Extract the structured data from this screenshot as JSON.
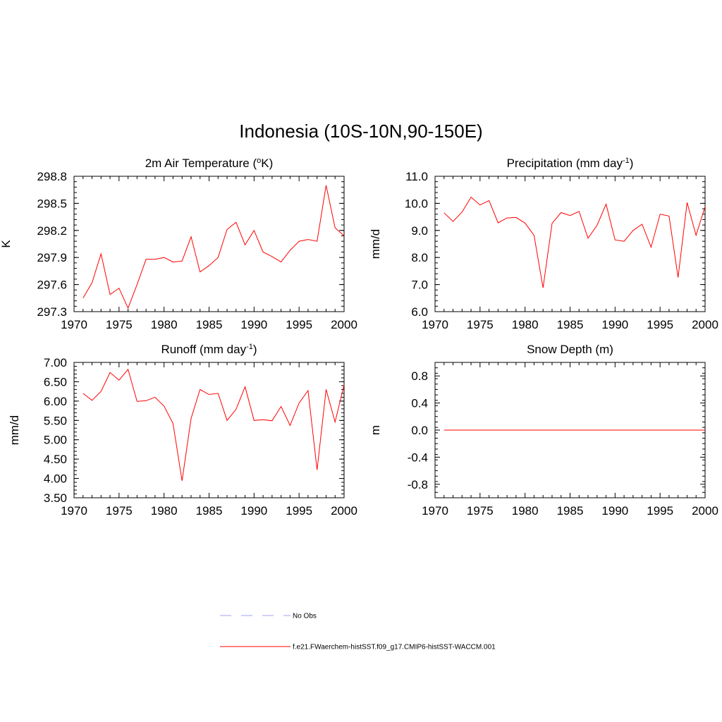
{
  "figure": {
    "title": "Indonesia (10S-10N,90-150E)"
  },
  "legend": {
    "obs_label": "No Obs",
    "obs_color": "#a3a3f5",
    "model_label": "f.e21.FWaerchem-histSST.f09_g17.CMIP6-histSST-WACCM.001",
    "model_color": "#ff0000"
  },
  "chart_data": [
    {
      "type": "line",
      "title": "2m Air Temperature (",
      "title_sup": "o",
      "title_tail": "K)",
      "ylabel": "K",
      "xlim": [
        1970,
        2000
      ],
      "ylim": [
        297.3,
        298.8
      ],
      "xticks": [
        1970,
        1975,
        1980,
        1985,
        1990,
        1995,
        2000
      ],
      "xtick_labels": [
        "1970",
        "1975",
        "1980",
        "1985",
        "1990",
        "1995",
        "2000"
      ],
      "yticks": [
        297.3,
        297.6,
        297.9,
        298.2,
        298.5,
        298.8
      ],
      "ytick_labels": [
        "297.3",
        "297.6",
        "297.9",
        "298.2",
        "298.5",
        "298.8"
      ],
      "series": [
        {
          "color": "#ff0000",
          "x": [
            1971,
            1972,
            1973,
            1974,
            1975,
            1976,
            1977,
            1978,
            1979,
            1980,
            1981,
            1982,
            1983,
            1984,
            1985,
            1986,
            1987,
            1988,
            1989,
            1990,
            1991,
            1992,
            1993,
            1994,
            1995,
            1996,
            1997,
            1998,
            1999,
            2000
          ],
          "values": [
            297.45,
            297.62,
            297.94,
            297.49,
            297.56,
            297.34,
            297.6,
            297.88,
            297.88,
            297.9,
            297.85,
            297.86,
            298.13,
            297.74,
            297.81,
            297.9,
            298.21,
            298.29,
            298.04,
            298.2,
            297.96,
            297.91,
            297.85,
            297.98,
            298.08,
            298.1,
            298.08,
            298.7,
            298.23,
            298.14
          ]
        }
      ]
    },
    {
      "type": "line",
      "title": "Precipitation (mm day",
      "title_sup": "-1",
      "title_tail": ")",
      "ylabel": "mm/d",
      "xlim": [
        1970,
        2000
      ],
      "ylim": [
        6.0,
        11.0
      ],
      "xticks": [
        1970,
        1975,
        1980,
        1985,
        1990,
        1995,
        2000
      ],
      "xtick_labels": [
        "1970",
        "1975",
        "1980",
        "1985",
        "1990",
        "1995",
        "2000"
      ],
      "yticks": [
        6,
        7,
        8,
        9,
        10,
        11
      ],
      "ytick_labels": [
        "6.0",
        "7.0",
        "8.0",
        "9.0",
        "10.0",
        "11.0"
      ],
      "series": [
        {
          "color": "#ff0000",
          "x": [
            1971,
            1972,
            1973,
            1974,
            1975,
            1976,
            1977,
            1978,
            1979,
            1980,
            1981,
            1982,
            1983,
            1984,
            1985,
            1986,
            1987,
            1988,
            1989,
            1990,
            1991,
            1992,
            1993,
            1994,
            1995,
            1996,
            1997,
            1998,
            1999,
            2000
          ],
          "values": [
            9.65,
            9.33,
            9.68,
            10.23,
            9.94,
            10.1,
            9.28,
            9.46,
            9.48,
            9.27,
            8.82,
            6.88,
            9.26,
            9.66,
            9.55,
            9.7,
            8.71,
            9.19,
            9.97,
            8.65,
            8.6,
            9.0,
            9.23,
            8.38,
            9.6,
            9.53,
            7.26,
            10.03,
            8.82,
            9.88
          ]
        }
      ]
    },
    {
      "type": "line",
      "title": "Runoff (mm day",
      "title_sup": "-1",
      "title_tail": ")",
      "ylabel": "mm/d",
      "xlim": [
        1970,
        2000
      ],
      "ylim": [
        3.5,
        7.0
      ],
      "xticks": [
        1970,
        1975,
        1980,
        1985,
        1990,
        1995,
        2000
      ],
      "xtick_labels": [
        "1970",
        "1975",
        "1980",
        "1985",
        "1990",
        "1995",
        "2000"
      ],
      "yticks": [
        3.5,
        4.0,
        4.5,
        5.0,
        5.5,
        6.0,
        6.5,
        7.0
      ],
      "ytick_labels": [
        "3.50",
        "4.00",
        "4.50",
        "5.00",
        "5.50",
        "6.00",
        "6.50",
        "7.00"
      ],
      "series": [
        {
          "color": "#ff0000",
          "x": [
            1971,
            1972,
            1973,
            1974,
            1975,
            1976,
            1977,
            1978,
            1979,
            1980,
            1981,
            1982,
            1983,
            1984,
            1985,
            1986,
            1987,
            1988,
            1989,
            1990,
            1991,
            1992,
            1993,
            1994,
            1995,
            1996,
            1997,
            1998,
            1999,
            2000
          ],
          "values": [
            6.2,
            6.02,
            6.25,
            6.74,
            6.54,
            6.82,
            5.99,
            6.01,
            6.1,
            5.87,
            5.42,
            3.94,
            5.55,
            6.3,
            6.17,
            6.2,
            5.5,
            5.79,
            6.37,
            5.5,
            5.52,
            5.49,
            5.86,
            5.37,
            5.95,
            6.27,
            4.22,
            6.3,
            5.46,
            6.42
          ]
        }
      ]
    },
    {
      "type": "line",
      "title": "Snow Depth (m)",
      "title_sup": "",
      "title_tail": "",
      "ylabel": "m",
      "xlim": [
        1970,
        2000
      ],
      "ylim": [
        -1.0,
        1.0
      ],
      "xticks": [
        1970,
        1975,
        1980,
        1985,
        1990,
        1995,
        2000
      ],
      "xtick_labels": [
        "1970",
        "1975",
        "1980",
        "1985",
        "1990",
        "1995",
        "2000"
      ],
      "yticks": [
        -0.8,
        -0.4,
        0.0,
        0.4,
        0.8
      ],
      "ytick_labels": [
        "-0.8",
        "-0.4",
        "0.0",
        "0.4",
        "0.8"
      ],
      "series": [
        {
          "color": "#ff0000",
          "x": [
            1971,
            1972,
            1973,
            1974,
            1975,
            1976,
            1977,
            1978,
            1979,
            1980,
            1981,
            1982,
            1983,
            1984,
            1985,
            1986,
            1987,
            1988,
            1989,
            1990,
            1991,
            1992,
            1993,
            1994,
            1995,
            1996,
            1997,
            1998,
            1999,
            2000
          ],
          "values": [
            0,
            0,
            0,
            0,
            0,
            0,
            0,
            0,
            0,
            0,
            0,
            0,
            0,
            0,
            0,
            0,
            0,
            0,
            0,
            0,
            0,
            0,
            0,
            0,
            0,
            0,
            0,
            0,
            0,
            0
          ]
        }
      ]
    }
  ]
}
